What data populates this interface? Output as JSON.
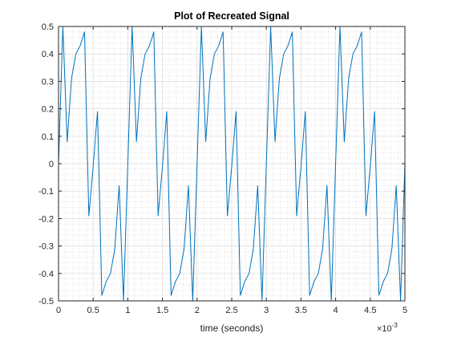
{
  "chart_data": {
    "type": "line",
    "title": "Plot of Recreated Signal",
    "xlabel": "time (seconds)",
    "ylabel": "",
    "x_exponent": "×10",
    "x_exponent_power": "-3",
    "xlim": [
      0,
      0.005
    ],
    "ylim": [
      -0.5,
      0.5
    ],
    "xticks": [
      0,
      0.0005,
      0.001,
      0.0015,
      0.002,
      0.0025,
      0.003,
      0.0035,
      0.004,
      0.0045,
      0.005
    ],
    "xtick_labels": [
      "0",
      "0.5",
      "1",
      "1.5",
      "2",
      "2.5",
      "3",
      "3.5",
      "4",
      "4.5",
      "5"
    ],
    "yticks": [
      -0.5,
      -0.4,
      -0.3,
      -0.2,
      -0.1,
      0,
      0.1,
      0.2,
      0.3,
      0.4,
      0.5
    ],
    "ytick_labels": [
      "-0.5",
      "-0.4",
      "-0.3",
      "-0.2",
      "-0.1",
      "0",
      "0.1",
      "0.2",
      "0.3",
      "0.4",
      "0.5"
    ],
    "grid": true,
    "minor_grid": true,
    "line_color": "#0072BD",
    "x": [
      0.0,
      6.25e-05,
      0.000125,
      0.0001875,
      0.00025,
      0.0003125,
      0.000375,
      0.0004375,
      0.0005,
      0.0005625,
      0.000625,
      0.0006875,
      0.00075,
      0.0008125,
      0.000875,
      0.0009375,
      0.001,
      0.0010625,
      0.001125,
      0.0011875,
      0.00125,
      0.0013125,
      0.001375,
      0.0014375,
      0.0015,
      0.0015625,
      0.001625,
      0.0016875,
      0.00175,
      0.0018125,
      0.001875,
      0.0019375,
      0.002,
      0.0020625,
      0.002125,
      0.0021875,
      0.00225,
      0.0023125,
      0.002375,
      0.0024375,
      0.0025,
      0.0025625,
      0.002625,
      0.0026875,
      0.00275,
      0.0028125,
      0.002875,
      0.0029375,
      0.003,
      0.0030625,
      0.003125,
      0.0031875,
      0.00325,
      0.0033125,
      0.003375,
      0.0034375,
      0.0035,
      0.0035625,
      0.003625,
      0.0036875,
      0.00375,
      0.0038125,
      0.003875,
      0.0039375,
      0.004,
      0.0040625,
      0.004125,
      0.0041875,
      0.00425,
      0.0043125,
      0.004375,
      0.0044375,
      0.0045,
      0.0045625,
      0.004625,
      0.0046875,
      0.00475,
      0.0048125,
      0.004875,
      0.0049375,
      0.005
    ],
    "values": [
      0.0,
      0.5,
      0.08,
      0.31,
      0.4,
      0.43,
      0.48,
      -0.19,
      -0.01,
      0.19,
      -0.48,
      -0.43,
      -0.4,
      -0.31,
      -0.08,
      -0.5,
      0.0,
      0.5,
      0.08,
      0.31,
      0.4,
      0.43,
      0.48,
      -0.19,
      -0.01,
      0.19,
      -0.48,
      -0.43,
      -0.4,
      -0.31,
      -0.08,
      -0.5,
      0.0,
      0.5,
      0.08,
      0.31,
      0.4,
      0.43,
      0.48,
      -0.19,
      -0.01,
      0.19,
      -0.48,
      -0.43,
      -0.4,
      -0.31,
      -0.08,
      -0.5,
      0.0,
      0.5,
      0.08,
      0.31,
      0.4,
      0.43,
      0.48,
      -0.19,
      -0.01,
      0.19,
      -0.48,
      -0.43,
      -0.4,
      -0.31,
      -0.08,
      -0.5,
      0.0,
      0.5,
      0.08,
      0.31,
      0.4,
      0.43,
      0.48,
      -0.19,
      -0.01,
      0.19,
      -0.48,
      -0.43,
      -0.4,
      -0.31,
      -0.08,
      -0.5,
      0.0
    ]
  }
}
